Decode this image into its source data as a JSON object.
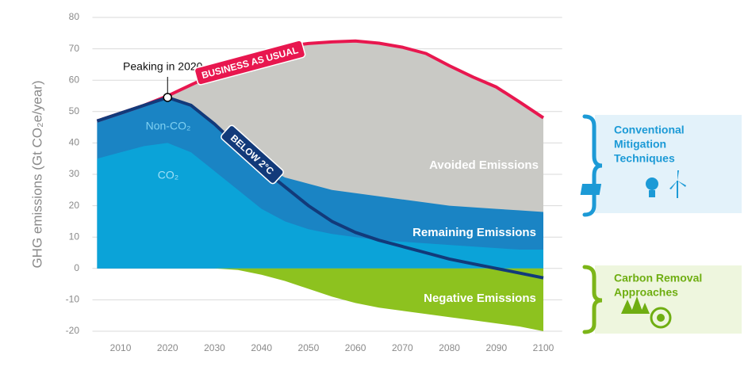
{
  "chart_data": {
    "type": "area",
    "y_label": "GHG emissions (Gt CO₂e/year)",
    "x": [
      2005,
      2010,
      2015,
      2020,
      2025,
      2030,
      2035,
      2040,
      2045,
      2050,
      2055,
      2060,
      2065,
      2070,
      2075,
      2080,
      2085,
      2090,
      2095,
      2100
    ],
    "xlim": [
      2004,
      2104
    ],
    "xticks": [
      2010,
      2020,
      2030,
      2040,
      2050,
      2060,
      2070,
      2080,
      2090,
      2100
    ],
    "ylim": [
      -20,
      80
    ],
    "yticks": [
      -20,
      -10,
      0,
      10,
      20,
      30,
      40,
      50,
      60,
      70,
      80
    ],
    "grid": true,
    "series": [
      {
        "name": "BUSINESS AS USUAL",
        "color": "#e8174f",
        "fill": "#c9c9c5",
        "values": [
          47,
          49.5,
          52,
          55,
          58.5,
          62,
          65.5,
          69,
          70.8,
          71.7,
          72.2,
          72.5,
          71.8,
          70.5,
          68.5,
          64.6,
          61,
          57.8,
          53,
          48
        ]
      },
      {
        "name": "Non-CO₂",
        "fill": "#1a84c4",
        "values": [
          47,
          49.5,
          52,
          54.5,
          52,
          46,
          39,
          33,
          29,
          27,
          25,
          24,
          23,
          22,
          21,
          20,
          19.5,
          19,
          18.5,
          18
        ]
      },
      {
        "name": "CO₂",
        "fill": "#0ba3d8",
        "values": [
          35,
          37,
          39,
          40,
          37,
          31,
          25,
          19,
          15,
          12.5,
          11,
          10,
          9,
          8.5,
          8,
          7.5,
          7,
          6.5,
          6,
          6
        ]
      },
      {
        "name": "Negative Emissions",
        "fill": "#8dc21f",
        "values": [
          0,
          0,
          0,
          0,
          0,
          0,
          -0.5,
          -2,
          -4,
          -6.5,
          -9,
          -11,
          -12.5,
          -13.5,
          -14.5,
          -15.5,
          -16.5,
          -17.5,
          -18.5,
          -20
        ]
      },
      {
        "name": "BELOW 2°C",
        "color": "#123a7a",
        "values": [
          47,
          49.5,
          52,
          54.5,
          52,
          46,
          39,
          32,
          26,
          20,
          15,
          11.5,
          9,
          7,
          5,
          3,
          1.5,
          0,
          -1.5,
          -3
        ]
      }
    ],
    "peak_label": "Peaking in 2020",
    "annotations": [
      "Avoided Emissions",
      "Remaining Emissions"
    ],
    "side_panels": [
      {
        "title_lines": [
          "Conventional",
          "Mitigation",
          "Techniques"
        ],
        "color": "#1c9ad6"
      },
      {
        "title_lines": [
          "Carbon Removal",
          "Approaches"
        ],
        "color": "#6fae12"
      }
    ]
  }
}
